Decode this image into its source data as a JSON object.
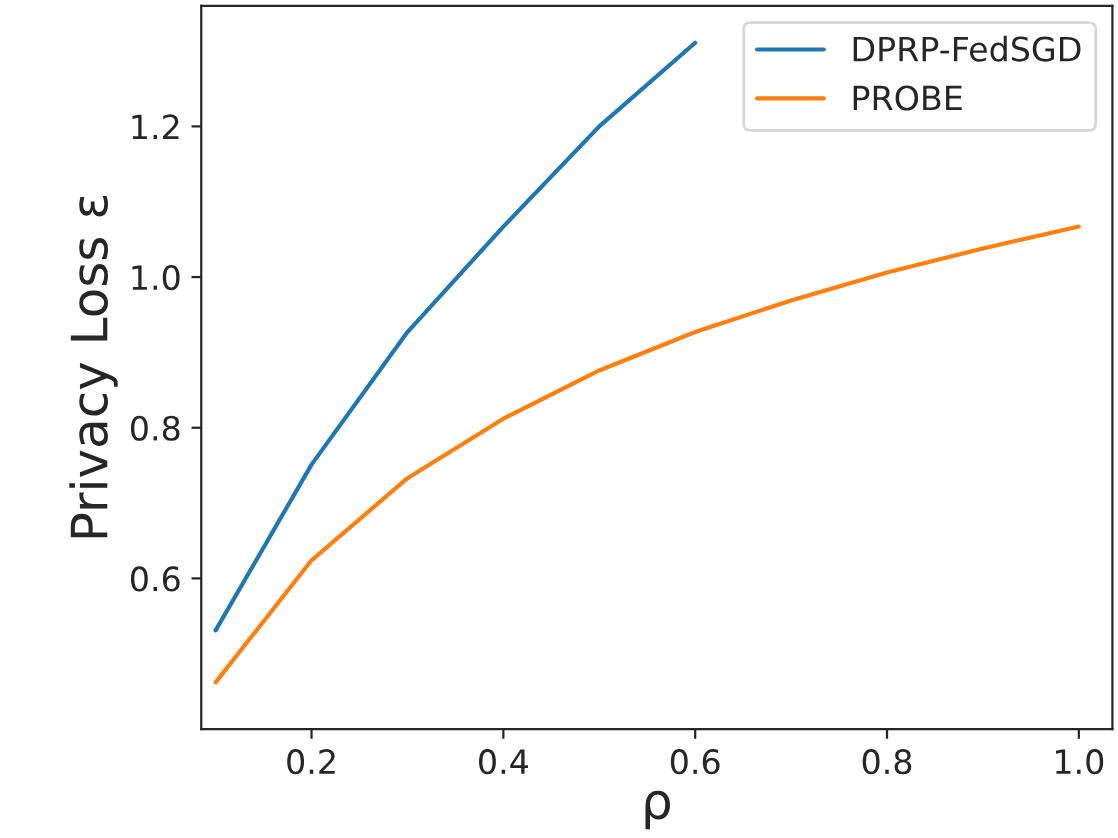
{
  "chart_data": {
    "type": "line",
    "xlabel": "ρ",
    "ylabel": "Privacy Loss ε",
    "xlim": [
      0.085,
      1.035
    ],
    "ylim": [
      0.4,
      1.36
    ],
    "xticks": [
      0.2,
      0.4,
      0.6,
      0.8,
      {
        "value": 1,
        "label": "1.0"
      }
    ],
    "yticks": [
      0.6,
      0.8,
      {
        "value": 1,
        "label": "1.0"
      },
      1.2
    ],
    "legend": "top right",
    "grid": false,
    "series": [
      {
        "name": "DPRP-FedSGD",
        "color": "#1f77b4",
        "x": [
          0.1,
          0.2,
          0.3,
          0.4,
          0.5,
          0.6
        ],
        "values": [
          0.531,
          0.751,
          0.927,
          1.067,
          1.2,
          1.311
        ]
      },
      {
        "name": "PROBE",
        "color": "#ff7f0e",
        "x": [
          0.1,
          0.2,
          0.3,
          0.4,
          0.5,
          0.6,
          0.7,
          0.8,
          0.9,
          1.0
        ],
        "values": [
          0.462,
          0.624,
          0.733,
          0.812,
          0.876,
          0.927,
          0.969,
          1.006,
          1.038,
          1.067
        ]
      }
    ]
  }
}
